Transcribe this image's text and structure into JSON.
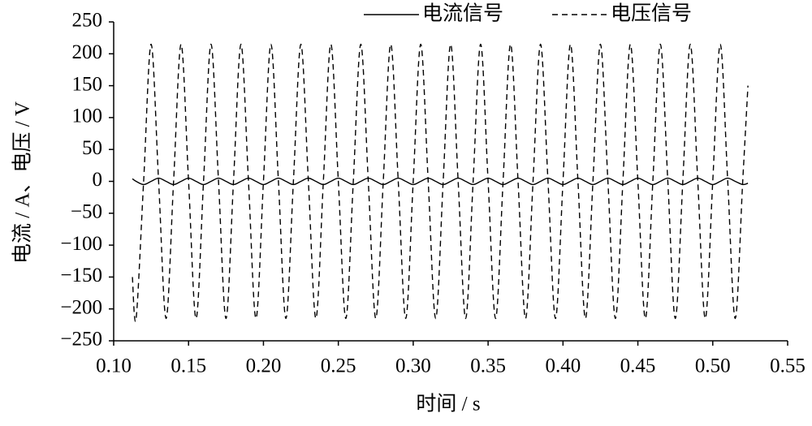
{
  "chart_data": {
    "type": "line",
    "x_label": "时间 / s",
    "y_label": "电流 / A、电压 / V",
    "x": [
      0.1125,
      0.115,
      0.12,
      0.125,
      0.13,
      0.135,
      0.14,
      0.145,
      0.15,
      0.155,
      0.16,
      0.165,
      0.17,
      0.175,
      0.18,
      0.185,
      0.19,
      0.195,
      0.2,
      0.205,
      0.21,
      0.215,
      0.22,
      0.225,
      0.23,
      0.235,
      0.24,
      0.245,
      0.25,
      0.255,
      0.26,
      0.265,
      0.27,
      0.275,
      0.28,
      0.285,
      0.29,
      0.295,
      0.3,
      0.305,
      0.31,
      0.315,
      0.32,
      0.325,
      0.33,
      0.335,
      0.34,
      0.345,
      0.35,
      0.355,
      0.36,
      0.365,
      0.37,
      0.375,
      0.38,
      0.385,
      0.39,
      0.395,
      0.4,
      0.405,
      0.41,
      0.415,
      0.42,
      0.425,
      0.43,
      0.435,
      0.44,
      0.445,
      0.45,
      0.455,
      0.46,
      0.465,
      0.47,
      0.475,
      0.48,
      0.485,
      0.49,
      0.495,
      0.5,
      0.505,
      0.51,
      0.515,
      0.52,
      0.5235
    ],
    "series": [
      {
        "name": "电流信号",
        "color": "#000000",
        "line_style": "solid",
        "values": [
          4,
          0,
          -5,
          0,
          5,
          0,
          -5,
          0,
          5,
          0,
          -5,
          0,
          5,
          0,
          -5,
          0,
          5,
          0,
          -5,
          0,
          5,
          0,
          -5,
          0,
          5,
          0,
          -5,
          0,
          5,
          0,
          -5,
          0,
          5,
          0,
          -5,
          0,
          5,
          0,
          -5,
          0,
          5,
          0,
          -5,
          0,
          5,
          0,
          -5,
          0,
          5,
          0,
          -5,
          0,
          5,
          0,
          -5,
          0,
          5,
          0,
          -5,
          0,
          5,
          0,
          -5,
          0,
          5,
          0,
          -5,
          0,
          5,
          0,
          -5,
          0,
          5,
          0,
          -5,
          0,
          5,
          0,
          -5,
          0,
          5,
          0,
          -5,
          -3
        ]
      },
      {
        "name": "电压信号",
        "color": "#000000",
        "line_style": "dashed",
        "values": [
          -150,
          -215,
          0,
          215,
          0,
          -215,
          0,
          215,
          0,
          -215,
          0,
          215,
          0,
          -215,
          0,
          215,
          0,
          -215,
          0,
          215,
          0,
          -215,
          0,
          215,
          0,
          -215,
          0,
          215,
          0,
          -215,
          0,
          215,
          0,
          -215,
          0,
          215,
          0,
          -215,
          0,
          215,
          0,
          -215,
          0,
          215,
          0,
          -215,
          0,
          215,
          0,
          -215,
          0,
          215,
          0,
          -215,
          0,
          215,
          0,
          -215,
          0,
          215,
          0,
          -215,
          0,
          215,
          0,
          -215,
          0,
          215,
          0,
          -215,
          0,
          215,
          0,
          -215,
          0,
          215,
          0,
          -215,
          0,
          215,
          0,
          -215,
          0,
          150
        ]
      }
    ],
    "xlim": [
      0.1,
      0.55
    ],
    "xticks": [
      {
        "value": 0.1,
        "label": "0.10"
      },
      0.15,
      {
        "value": 0.2,
        "label": "0.20"
      },
      0.25,
      {
        "value": 0.3,
        "label": "0.30"
      },
      0.35,
      {
        "value": 0.4,
        "label": "0.40"
      },
      0.45,
      {
        "value": 0.5,
        "label": "0.50"
      },
      0.55
    ],
    "ylim": [
      -250,
      250
    ],
    "yticks": [
      {
        "value": -250,
        "label": "−250"
      },
      {
        "value": -200,
        "label": "−200"
      },
      {
        "value": -150,
        "label": "−150"
      },
      {
        "value": -100,
        "label": "−100"
      },
      {
        "value": -50,
        "label": "−50"
      },
      0,
      50,
      100,
      150,
      200,
      250
    ],
    "grid": false,
    "legend": "top"
  }
}
